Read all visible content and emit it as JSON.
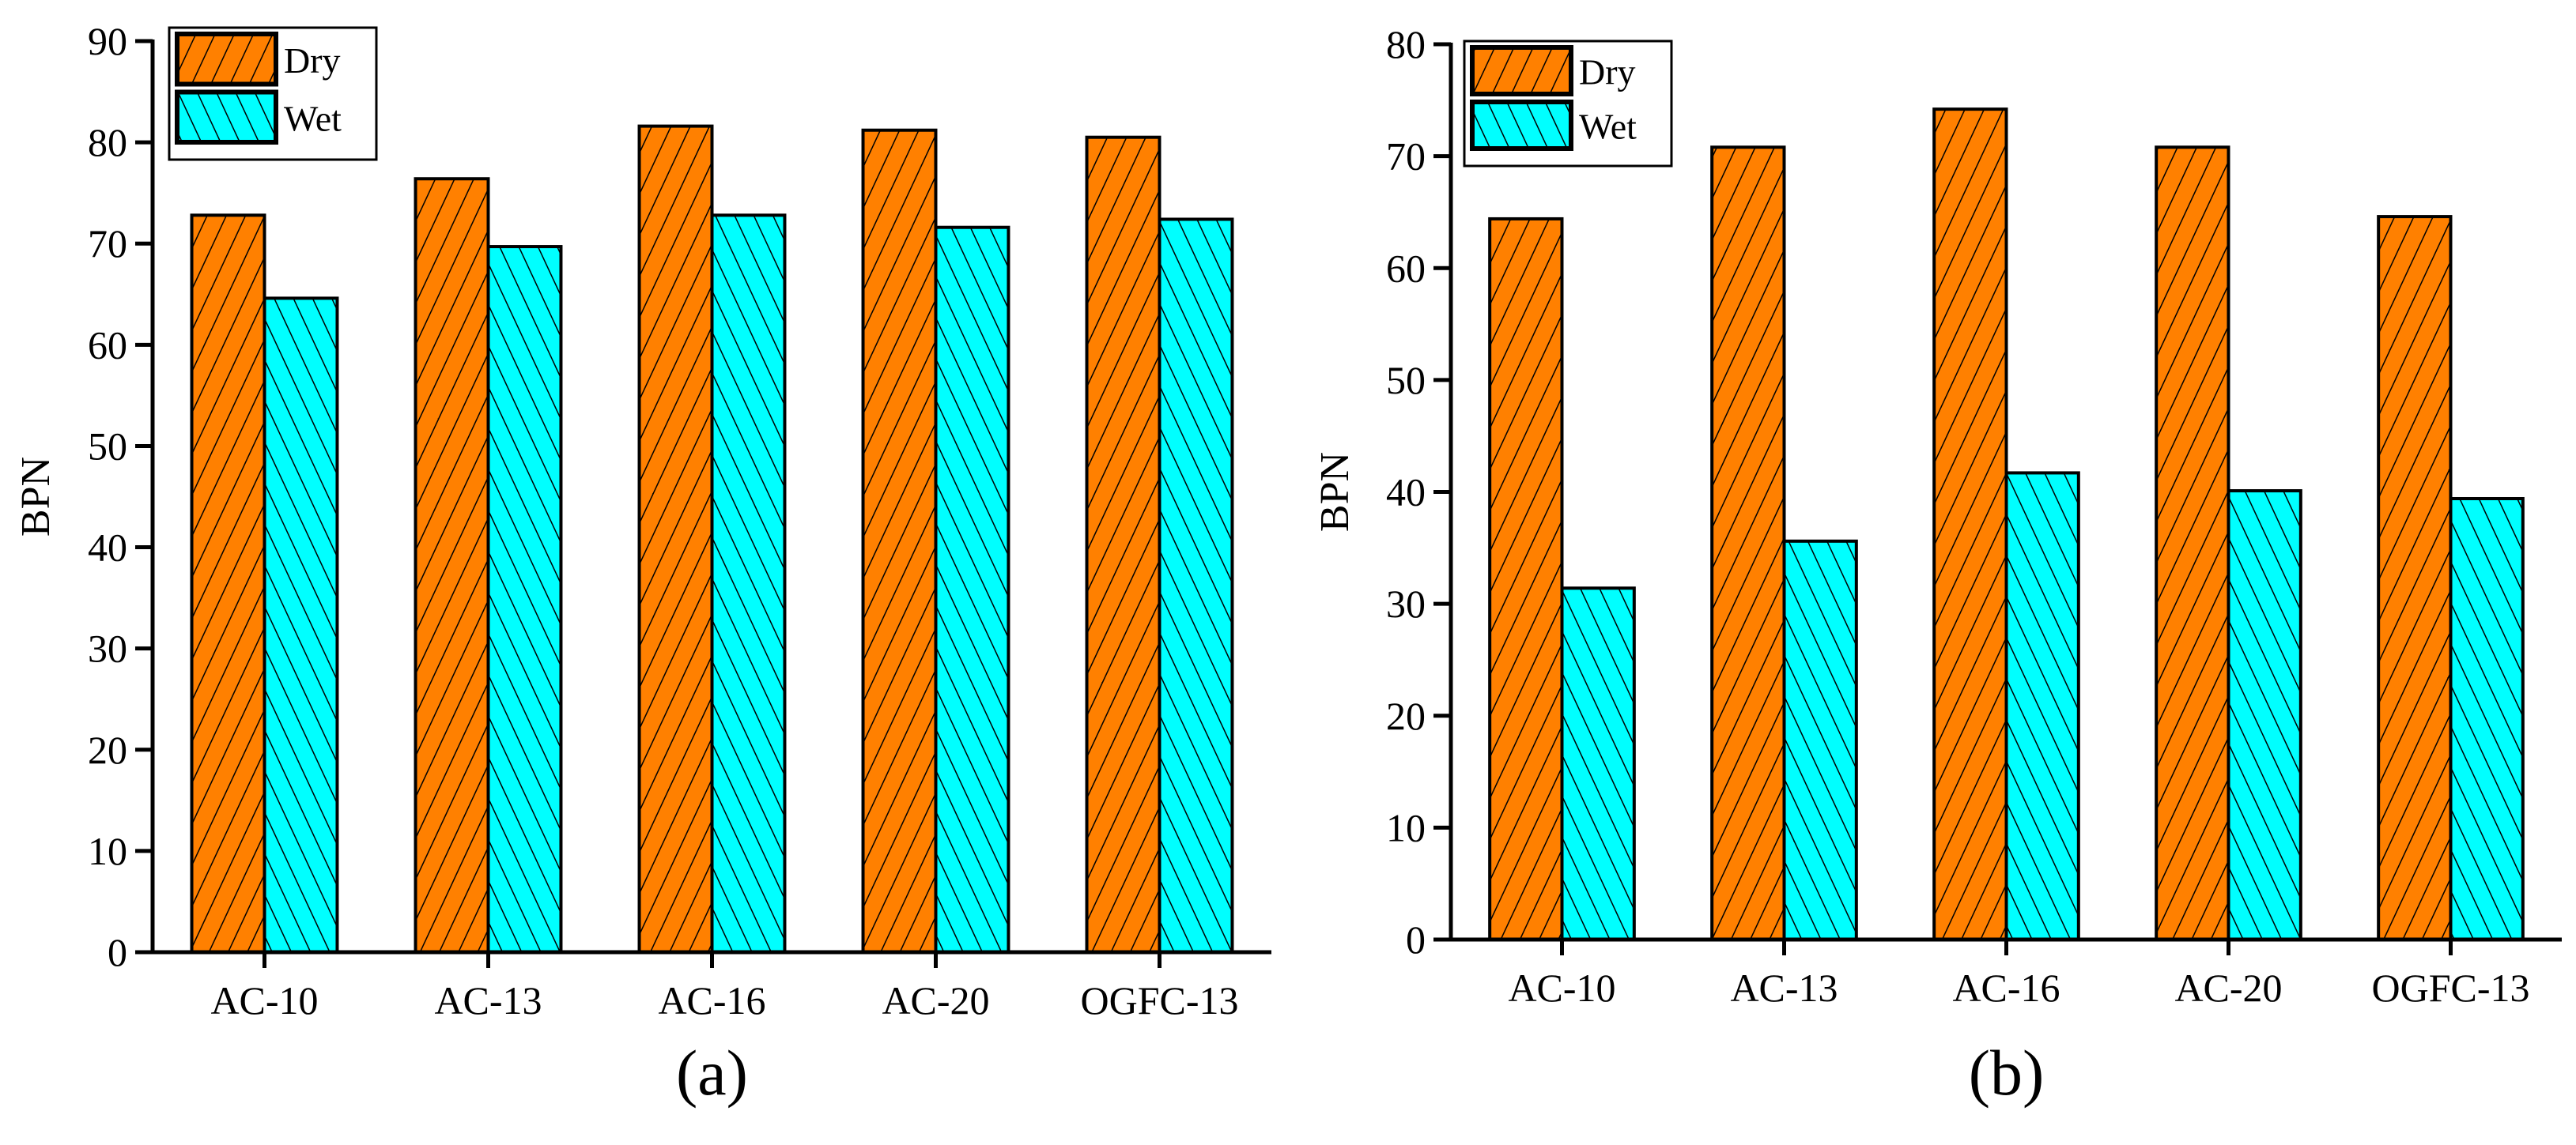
{
  "chart_data": [
    {
      "type": "bar",
      "panel_label": "(a)",
      "ylabel": "BPN",
      "xlabel": "",
      "ylim": [
        0,
        90
      ],
      "yticks": [
        0,
        10,
        20,
        30,
        40,
        50,
        60,
        70,
        80,
        90
      ],
      "categories": [
        "AC-10",
        "AC-13",
        "AC-16",
        "AC-20",
        "OGFC-13"
      ],
      "legend_position": "top-left",
      "series": [
        {
          "name": "Dry",
          "color": "#FF8000",
          "hatch": "forward",
          "values": [
            72.8,
            76.4,
            81.6,
            81.2,
            80.5
          ]
        },
        {
          "name": "Wet",
          "color": "#00FFFF",
          "hatch": "backward",
          "values": [
            64.6,
            69.7,
            72.8,
            71.6,
            72.4
          ]
        }
      ]
    },
    {
      "type": "bar",
      "panel_label": "(b)",
      "ylabel": "BPN",
      "xlabel": "",
      "ylim": [
        0,
        80
      ],
      "yticks": [
        0,
        10,
        20,
        30,
        40,
        50,
        60,
        70,
        80
      ],
      "categories": [
        "AC-10",
        "AC-13",
        "AC-16",
        "AC-20",
        "OGFC-13"
      ],
      "legend_position": "top-left",
      "series": [
        {
          "name": "Dry",
          "color": "#FF8000",
          "hatch": "forward",
          "values": [
            64.4,
            70.8,
            74.2,
            70.8,
            64.6
          ]
        },
        {
          "name": "Wet",
          "color": "#00FFFF",
          "hatch": "backward",
          "values": [
            31.4,
            35.6,
            41.7,
            40.1,
            39.4
          ]
        }
      ]
    }
  ]
}
